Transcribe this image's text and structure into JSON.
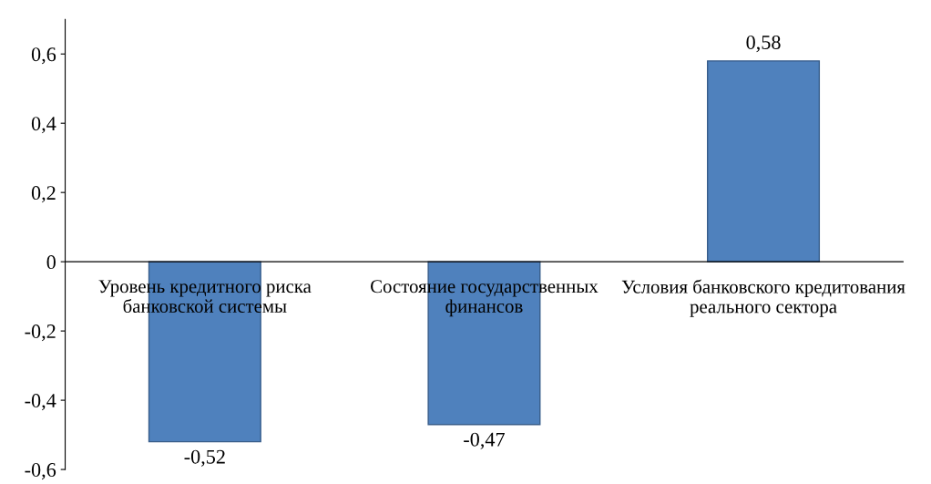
{
  "chart_data": {
    "type": "bar",
    "categories": [
      "Уровень кредитного риска банковской системы",
      "Состояние государственных финансов",
      "Условия банковского кредитования реального сектора"
    ],
    "values": [
      -0.52,
      -0.47,
      0.58
    ],
    "value_labels": [
      "-0,52",
      "-0,47",
      "0,58"
    ],
    "color": "#4f81bd",
    "ylim": [
      -0.6,
      0.7
    ],
    "yticks": [
      {
        "value": -0.6,
        "label": "-0,6"
      },
      {
        "value": -0.4,
        "label": "-0,4"
      },
      {
        "value": -0.2,
        "label": "-0,2"
      },
      0,
      {
        "value": 0.2,
        "label": "0,2"
      },
      {
        "value": 0.4,
        "label": "0,4"
      },
      {
        "value": 0.6,
        "label": "0,6"
      }
    ]
  }
}
